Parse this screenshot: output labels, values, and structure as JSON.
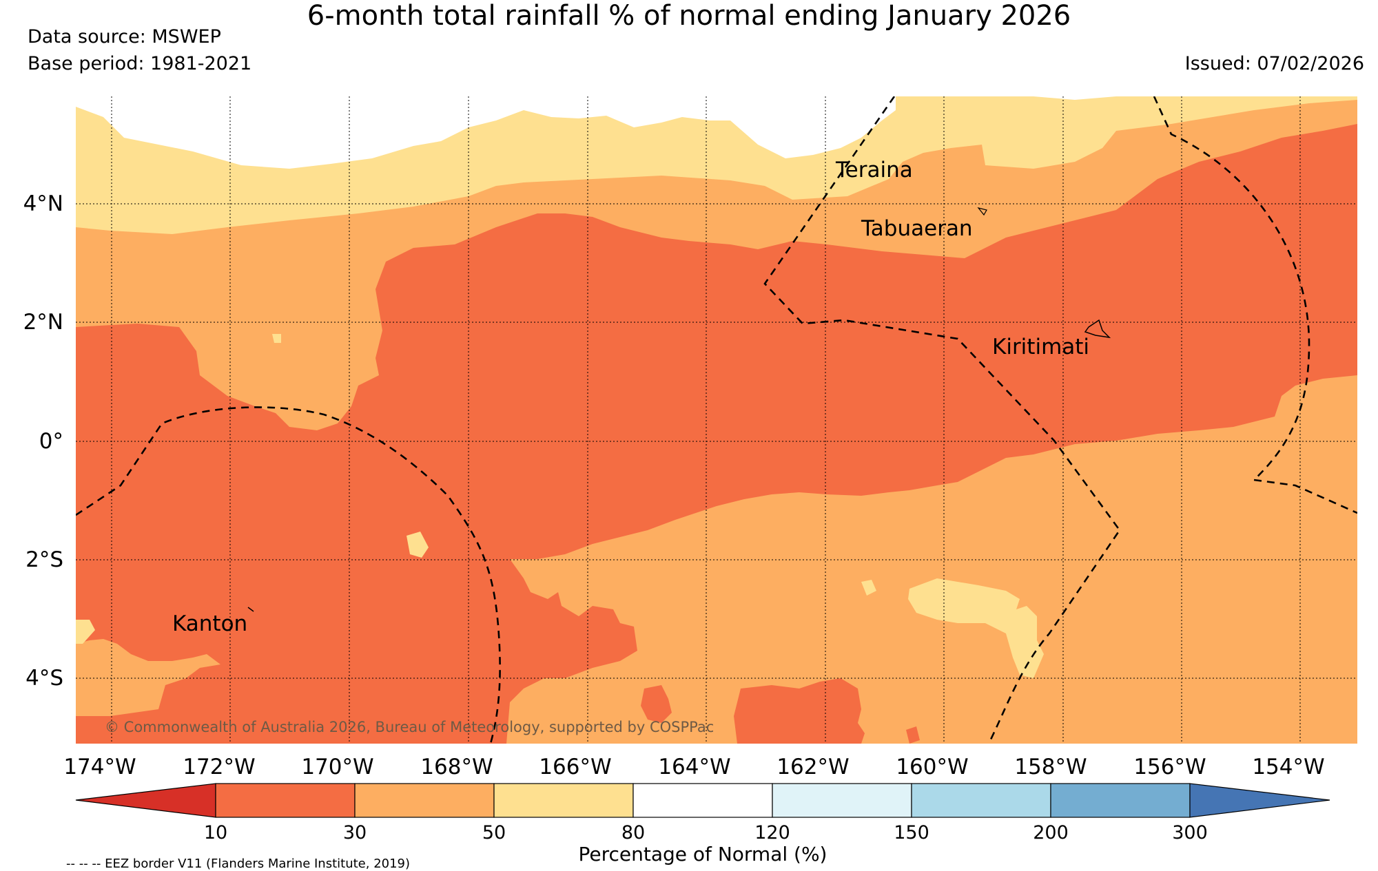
{
  "map": {
    "title": "6-month total rainfall % of normal ending January 2026",
    "data_source": "Data source: MSWEP",
    "base_period": "Base period: 1981-2021",
    "issued": "Issued: 07/02/2026",
    "copyright": "© Commonwealth of Australia 2026, Bureau of Meteorology, supported by COSPPac",
    "eez_note": "-- -- -- EEZ border V11 (Flanders Marine Institute, 2019)",
    "lon_ticks": [
      "174°W",
      "172°W",
      "170°W",
      "168°W",
      "166°W",
      "164°W",
      "162°W",
      "160°W",
      "158°W",
      "156°W",
      "154°W"
    ],
    "lat_ticks": [
      "4°N",
      "2°N",
      "0°",
      "2°S",
      "4°S"
    ],
    "places": [
      {
        "name": "Teraina"
      },
      {
        "name": "Tabuaeran"
      },
      {
        "name": "Kiritimati"
      },
      {
        "name": "Kanton"
      }
    ]
  },
  "colorbar": {
    "label": "Percentage of Normal (%)",
    "tick_labels": [
      "10",
      "30",
      "50",
      "80",
      "120",
      "150",
      "200",
      "300"
    ],
    "colors": [
      "#d73027",
      "#f46d43",
      "#fdae61",
      "#fee090",
      "#ffffff",
      "#e0f3f8",
      "#abd9e9",
      "#74add1",
      "#4575b4"
    ]
  }
}
